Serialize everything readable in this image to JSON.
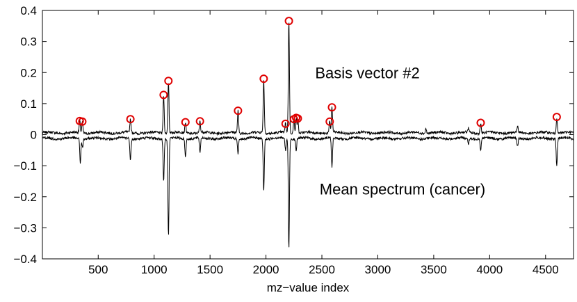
{
  "chart_data": {
    "type": "line",
    "title": "",
    "xlabel": "mz−value index",
    "ylabel": "",
    "xlim": [
      1,
      4750
    ],
    "ylim": [
      -0.4,
      0.4
    ],
    "xticks": [
      500,
      1000,
      1500,
      2000,
      2500,
      3000,
      3500,
      4000,
      4500
    ],
    "yticks": [
      -0.4,
      -0.3,
      -0.2,
      -0.1,
      0,
      0.1,
      0.2,
      0.3,
      0.4
    ],
    "ytick_labels": [
      "−0.4",
      "−0.3",
      "−0.2",
      "−0.1",
      "0",
      "0.1",
      "0.2",
      "0.3",
      "0.4"
    ],
    "grid": false,
    "colors": {
      "series": "#000000",
      "markers": "#e00000",
      "background": "#ffffff"
    },
    "annotations": [
      {
        "id": "basis",
        "text": "Basis vector #2",
        "x": 2440,
        "y": 0.2
      },
      {
        "id": "mean",
        "text": "Mean spectrum (cancer)",
        "x": 2480,
        "y": -0.175
      }
    ],
    "series": [
      {
        "name": "Basis vector #2",
        "baseline": 0.006,
        "noise": 0.004,
        "peaks": [
          {
            "x": 335,
            "y": 0.044
          },
          {
            "x": 358,
            "y": 0.042
          },
          {
            "x": 788,
            "y": 0.05
          },
          {
            "x": 1085,
            "y": 0.128
          },
          {
            "x": 1128,
            "y": 0.173
          },
          {
            "x": 1280,
            "y": 0.04
          },
          {
            "x": 1410,
            "y": 0.043
          },
          {
            "x": 1750,
            "y": 0.077
          },
          {
            "x": 1980,
            "y": 0.18
          },
          {
            "x": 2175,
            "y": 0.035
          },
          {
            "x": 2205,
            "y": 0.366
          },
          {
            "x": 2250,
            "y": 0.05
          },
          {
            "x": 2270,
            "y": 0.054
          },
          {
            "x": 2285,
            "y": 0.052
          },
          {
            "x": 2570,
            "y": 0.042
          },
          {
            "x": 2590,
            "y": 0.088
          },
          {
            "x": 3430,
            "y": 0.022
          },
          {
            "x": 3810,
            "y": 0.02
          },
          {
            "x": 3920,
            "y": 0.038
          },
          {
            "x": 4250,
            "y": 0.027
          },
          {
            "x": 4600,
            "y": 0.057
          }
        ]
      },
      {
        "name": "Mean spectrum (cancer)",
        "baseline": -0.012,
        "noise": 0.004,
        "peaks": [
          {
            "x": 340,
            "y": -0.09
          },
          {
            "x": 360,
            "y": -0.04
          },
          {
            "x": 788,
            "y": -0.085
          },
          {
            "x": 1085,
            "y": -0.15
          },
          {
            "x": 1128,
            "y": -0.33
          },
          {
            "x": 1280,
            "y": -0.07
          },
          {
            "x": 1410,
            "y": -0.06
          },
          {
            "x": 1750,
            "y": -0.06
          },
          {
            "x": 1980,
            "y": -0.182
          },
          {
            "x": 2175,
            "y": -0.05
          },
          {
            "x": 2205,
            "y": -0.368
          },
          {
            "x": 2270,
            "y": -0.05
          },
          {
            "x": 2590,
            "y": -0.105
          },
          {
            "x": 3810,
            "y": -0.03
          },
          {
            "x": 3920,
            "y": -0.05
          },
          {
            "x": 4250,
            "y": -0.04
          },
          {
            "x": 4600,
            "y": -0.1
          }
        ]
      }
    ],
    "markers": [
      {
        "x": 335,
        "y": 0.044
      },
      {
        "x": 358,
        "y": 0.042
      },
      {
        "x": 788,
        "y": 0.05
      },
      {
        "x": 1085,
        "y": 0.128
      },
      {
        "x": 1128,
        "y": 0.173
      },
      {
        "x": 1280,
        "y": 0.04
      },
      {
        "x": 1410,
        "y": 0.043
      },
      {
        "x": 1750,
        "y": 0.077
      },
      {
        "x": 1980,
        "y": 0.18
      },
      {
        "x": 2175,
        "y": 0.035
      },
      {
        "x": 2205,
        "y": 0.366
      },
      {
        "x": 2250,
        "y": 0.05
      },
      {
        "x": 2270,
        "y": 0.054
      },
      {
        "x": 2285,
        "y": 0.052
      },
      {
        "x": 2570,
        "y": 0.042
      },
      {
        "x": 2590,
        "y": 0.088
      },
      {
        "x": 3920,
        "y": 0.038
      },
      {
        "x": 4600,
        "y": 0.057
      }
    ]
  }
}
